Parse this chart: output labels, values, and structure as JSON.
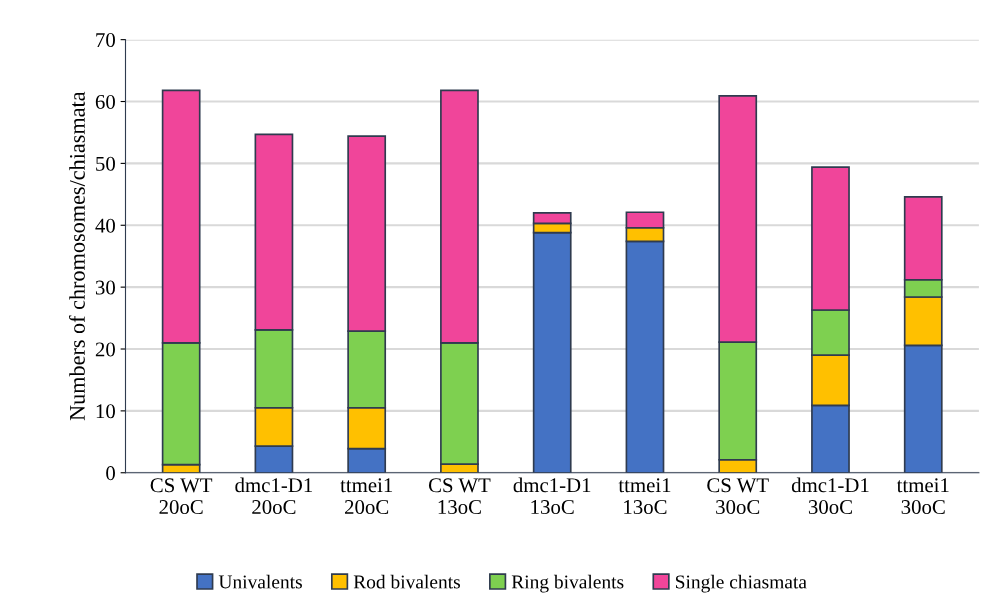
{
  "chart_data": {
    "type": "bar",
    "stacked": true,
    "ylabel": "Numbers of chromosomes/chiasmata",
    "categories": [
      "CS WT\n20oC",
      "dmc1-D1\n20oC",
      "ttmei1\n20oC",
      "CS WT\n13oC",
      "dmc1-D1\n13oC",
      "ttmei1\n13oC",
      "CS WT\n30oC",
      "dmc1-D1\n30oC",
      "ttmei1\n30oC"
    ],
    "series": [
      {
        "name": "Univalents",
        "color": "#4472c4",
        "values": [
          null,
          4.3,
          3.9,
          null,
          38.8,
          37.4,
          null,
          10.9,
          20.6
        ]
      },
      {
        "name": "Rod bivalents",
        "color": "#ffc000",
        "values": [
          1.3,
          6.2,
          6.6,
          1.4,
          1.5,
          2.2,
          2.1,
          8.1,
          7.8
        ]
      },
      {
        "name": "Ring bivalents",
        "color": "#7ed050",
        "values": [
          19.7,
          12.6,
          12.4,
          19.6,
          null,
          null,
          19.0,
          7.3,
          2.8
        ]
      },
      {
        "name": "Single chiasmata",
        "color": "#f0459a",
        "values": [
          40.8,
          31.6,
          31.5,
          40.8,
          1.7,
          2.5,
          39.8,
          23.1,
          13.4
        ]
      }
    ],
    "ylim": [
      0,
      70
    ],
    "yticks": [
      0,
      10,
      20,
      30,
      40,
      50,
      60,
      70
    ],
    "grid": "y",
    "legend": "bottom"
  }
}
